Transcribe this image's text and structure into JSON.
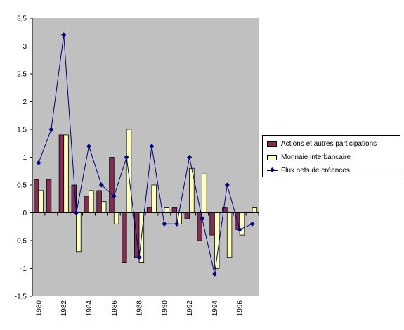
{
  "chart_data": {
    "type": "bar",
    "title": "",
    "xlabel": "",
    "ylabel": "",
    "ylim": [
      -1.5,
      3.5
    ],
    "yticks": [
      "-1,5",
      "-1",
      "-0,5",
      "0",
      "0,5",
      "1",
      "1,5",
      "2",
      "2,5",
      "3",
      "3,5"
    ],
    "x": [
      1980,
      1981,
      1982,
      1983,
      1984,
      1985,
      1986,
      1987,
      1988,
      1989,
      1990,
      1991,
      1992,
      1993,
      1994,
      1995,
      1996,
      1997
    ],
    "xtick_labels": [
      "1980",
      "1982",
      "1984",
      "1986",
      "1988",
      "1990",
      "1992",
      "1994",
      "1996"
    ],
    "grid": false,
    "legend_position": "right",
    "plot_background": "#c0c0c0",
    "series": [
      {
        "name": "Actions et autres participations",
        "kind": "bar",
        "color": "#7f2f52",
        "values": [
          0.6,
          0.6,
          1.4,
          0.5,
          0.3,
          0.4,
          1.0,
          -0.9,
          -0.8,
          0.1,
          0.0,
          0.1,
          -0.1,
          -0.5,
          -0.4,
          0.1,
          -0.3,
          0.0
        ]
      },
      {
        "name": "Monnaie interbancaire",
        "kind": "bar",
        "color": "#ffffc0",
        "values": [
          0.4,
          0.0,
          1.4,
          -0.7,
          0.4,
          0.2,
          -0.2,
          1.5,
          -0.9,
          0.5,
          0.1,
          -0.2,
          0.8,
          0.7,
          -1.0,
          -0.8,
          -0.4,
          0.1
        ]
      },
      {
        "name": "Flux nets de créances",
        "kind": "line",
        "color": "#000080",
        "values": [
          0.9,
          1.5,
          3.2,
          0.0,
          1.2,
          0.5,
          0.3,
          1.0,
          -0.8,
          1.2,
          -0.2,
          -0.2,
          1.0,
          -0.1,
          -1.1,
          0.5,
          -0.3,
          -0.2
        ]
      }
    ]
  }
}
